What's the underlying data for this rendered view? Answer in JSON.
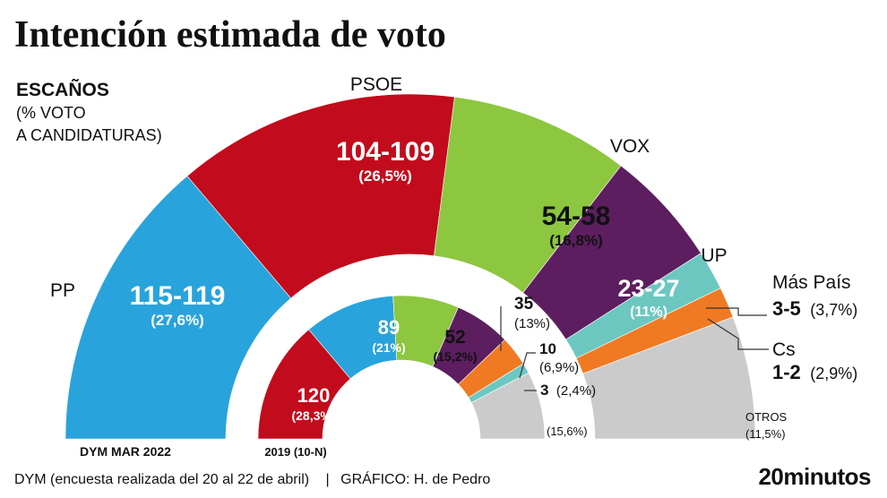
{
  "title": "Intención estimada de voto",
  "legend": {
    "line1": "ESCAÑOS",
    "line2": "(% VOTO",
    "line3": "A CANDIDATURAS)"
  },
  "footer": {
    "source": "DYM (encuesta realizada del 20 al 22 de abril)",
    "separator": "|",
    "credit": "GRÁFICO: H. de Pedro",
    "brand": "20minutos"
  },
  "colors": {
    "PP": "#29a3dc",
    "PSOE": "#c20b1c",
    "VOX": "#8dc63f",
    "UP": "#5c1e5f",
    "MasPais": "#6cc7c1",
    "Cs": "#f07a23",
    "Otros": "#cbcbcb",
    "brand": "#1f6fb4"
  },
  "chart_data": [
    {
      "type": "parliament-half-donut",
      "name": "DYM MAR 2022",
      "series": [
        {
          "name": "PP",
          "seats_label": "115-119",
          "pct_label": "(27,6%)",
          "pct": 27.6
        },
        {
          "name": "PSOE",
          "seats_label": "104-109",
          "pct_label": "(26,5%)",
          "pct": 26.5
        },
        {
          "name": "VOX",
          "seats_label": "54-58",
          "pct_label": "(16,8%)",
          "pct": 16.8
        },
        {
          "name": "UP",
          "seats_label": "23-27",
          "pct_label": "(11%)",
          "pct": 11.0
        },
        {
          "name": "Más País",
          "seats_label": "3-5",
          "pct_label": "(3,7%)",
          "pct": 3.7
        },
        {
          "name": "Cs",
          "seats_label": "1-2",
          "pct_label": "(2,9%)",
          "pct": 2.9
        },
        {
          "name": "OTROS",
          "seats_label": "",
          "pct_label": "(11,5%)",
          "pct": 11.5
        }
      ]
    },
    {
      "type": "parliament-half-donut",
      "name": "2019 (10-N)",
      "series": [
        {
          "name": "PSOE",
          "seats": 120,
          "pct_label": "(28,3%)",
          "pct": 28.3
        },
        {
          "name": "PP",
          "seats": 89,
          "pct_label": "(21%)",
          "pct": 21.0
        },
        {
          "name": "VOX",
          "seats": 52,
          "pct_label": "(15,2%)",
          "pct": 15.2
        },
        {
          "name": "UP",
          "seats": 35,
          "pct_label": "(13%)",
          "pct": 13.0
        },
        {
          "name": "Cs",
          "seats": 10,
          "pct_label": "(6,9%)",
          "pct": 6.9
        },
        {
          "name": "Más País",
          "seats": 3,
          "pct_label": "(2,4%)",
          "pct": 2.4
        },
        {
          "name": "OTROS",
          "seats": null,
          "pct_label": "(15,6%)",
          "pct": 15.6
        }
      ]
    }
  ]
}
